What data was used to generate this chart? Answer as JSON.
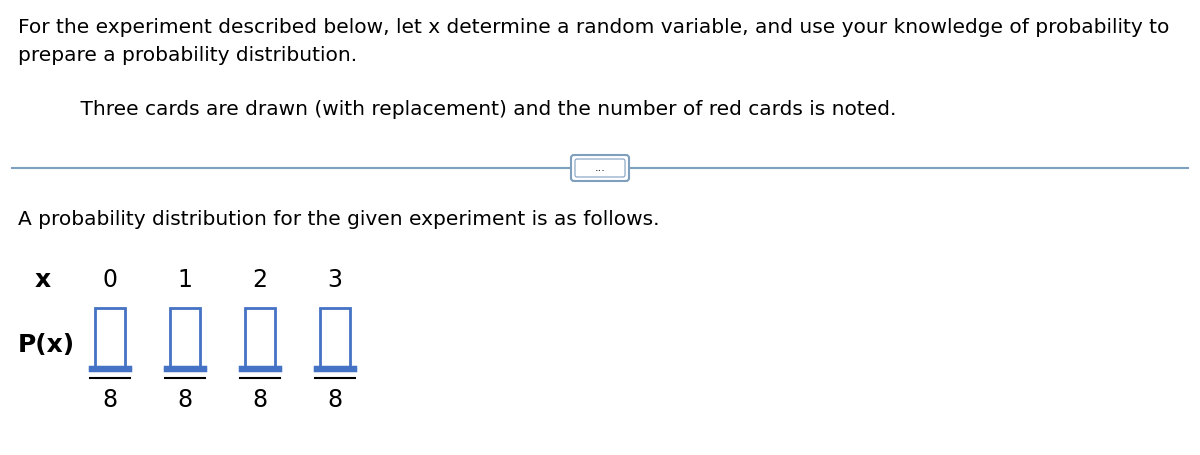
{
  "line1": "For the experiment described below, let x determine a random variable, and use your knowledge of probability to",
  "line2": "prepare a probability distribution.",
  "indent_text": "    Three cards are drawn (with replacement) and the number of red cards is noted.",
  "divider_label": "...",
  "result_text": "A probability distribution for the given experiment is as follows.",
  "x_label": "x",
  "x_values": [
    "0",
    "1",
    "2",
    "3"
  ],
  "px_label": "P(x)",
  "denominator": "8",
  "box_color": "#4472C4",
  "text_color": "#000000",
  "bg_color": "#ffffff",
  "divider_color": "#7f9fbf",
  "font_size_main": 14.5,
  "font_size_table": 16,
  "fig_width": 12.0,
  "fig_height": 4.55,
  "dpi": 100
}
